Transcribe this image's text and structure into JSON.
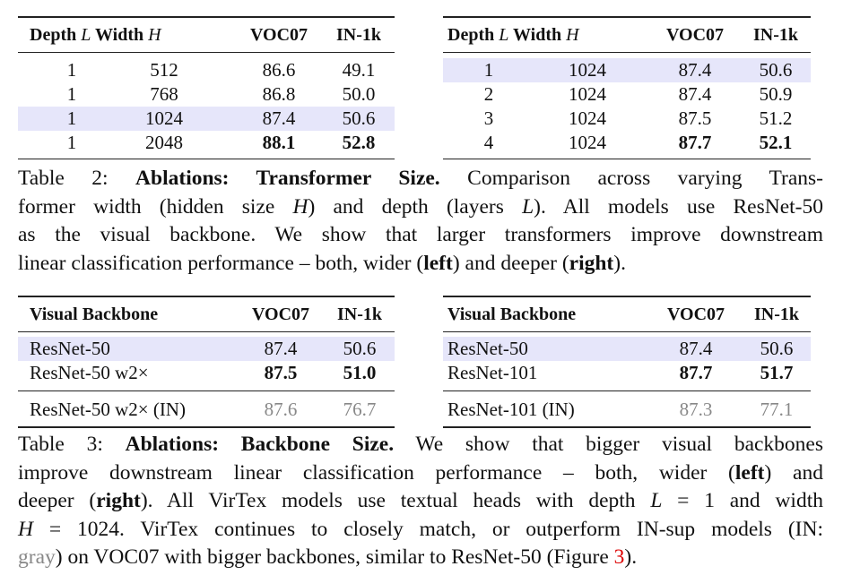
{
  "table2_left": {
    "headers": [
      "Depth",
      "L",
      "Width",
      "H",
      "VOC07",
      "IN-1k"
    ],
    "rows": [
      {
        "depth": "1",
        "width": "512",
        "voc": "86.6",
        "in": "49.1",
        "bold": false,
        "highlight": false
      },
      {
        "depth": "1",
        "width": "768",
        "voc": "86.8",
        "in": "50.0",
        "bold": false,
        "highlight": false
      },
      {
        "depth": "1",
        "width": "1024",
        "voc": "87.4",
        "in": "50.6",
        "bold": false,
        "highlight": true
      },
      {
        "depth": "1",
        "width": "2048",
        "voc": "88.1",
        "in": "52.8",
        "bold": true,
        "highlight": false
      }
    ]
  },
  "table2_right": {
    "headers": [
      "Depth",
      "L",
      "Width",
      "H",
      "VOC07",
      "IN-1k"
    ],
    "rows": [
      {
        "depth": "1",
        "width": "1024",
        "voc": "87.4",
        "in": "50.6",
        "bold": false,
        "highlight": true
      },
      {
        "depth": "2",
        "width": "1024",
        "voc": "87.4",
        "in": "50.9",
        "bold": false,
        "highlight": false
      },
      {
        "depth": "3",
        "width": "1024",
        "voc": "87.5",
        "in": "51.2",
        "bold": false,
        "highlight": false
      },
      {
        "depth": "4",
        "width": "1024",
        "voc": "87.7",
        "in": "52.1",
        "bold": true,
        "highlight": false
      }
    ]
  },
  "table2_caption": [
    [
      {
        "t": "Table 2: "
      },
      {
        "t": "Ablations: Transformer Size.",
        "s": "b"
      },
      {
        "t": " Comparison across varying Trans-"
      }
    ],
    [
      {
        "t": "former width (hidden size "
      },
      {
        "t": "H",
        "s": "i"
      },
      {
        "t": ") and depth (layers "
      },
      {
        "t": "L",
        "s": "i"
      },
      {
        "t": "). All models use ResNet-50"
      }
    ],
    [
      {
        "t": "as the visual backbone. We show that larger transformers improve downstream"
      }
    ],
    [
      {
        "t": "linear classification performance – both, wider ("
      },
      {
        "t": "left",
        "s": "b"
      },
      {
        "t": ") and deeper ("
      },
      {
        "t": "right",
        "s": "b"
      },
      {
        "t": ")."
      }
    ]
  ],
  "table3_left": {
    "headers": [
      "Visual Backbone",
      "VOC07",
      "IN-1k"
    ],
    "rows": [
      {
        "name": "ResNet-50",
        "voc": "87.4",
        "in": "50.6",
        "style": "hl"
      },
      {
        "name": "ResNet-50 w2×",
        "voc": "87.5",
        "in": "51.0",
        "style": "bold"
      },
      {
        "name": "ResNet-50 w2× (IN)",
        "voc": "87.6",
        "in": "76.7",
        "style": "gray"
      }
    ]
  },
  "table3_right": {
    "headers": [
      "Visual Backbone",
      "VOC07",
      "IN-1k"
    ],
    "rows": [
      {
        "name": "ResNet-50",
        "voc": "87.4",
        "in": "50.6",
        "style": "hl"
      },
      {
        "name": "ResNet-101",
        "voc": "87.7",
        "in": "51.7",
        "style": "bold"
      },
      {
        "name": "ResNet-101 (IN)",
        "voc": "87.3",
        "in": "77.1",
        "style": "gray"
      }
    ]
  },
  "table3_caption": [
    [
      {
        "t": "Table 3: "
      },
      {
        "t": "Ablations: Backbone Size.",
        "s": "b"
      },
      {
        "t": " We show that bigger visual backbones"
      }
    ],
    [
      {
        "t": "improve downstream linear classification performance – both, wider ("
      },
      {
        "t": "left",
        "s": "b"
      },
      {
        "t": ") and"
      }
    ],
    [
      {
        "t": "deeper ("
      },
      {
        "t": "right",
        "s": "b"
      },
      {
        "t": "). All VirTex models use textual heads with depth "
      },
      {
        "t": "L",
        "s": "i"
      },
      {
        "t": " = 1 and width"
      }
    ],
    [
      {
        "t": "H",
        "s": "i"
      },
      {
        "t": " = 1024. VirTex continues to closely match, or outperform IN-sup models (IN:"
      }
    ],
    [
      {
        "t": "gray",
        "s": "g"
      },
      {
        "t": ") on VOC07 with bigger backbones, similar to ResNet-50 (Figure "
      },
      {
        "t": "3",
        "s": "r"
      },
      {
        "t": ")."
      }
    ]
  ]
}
